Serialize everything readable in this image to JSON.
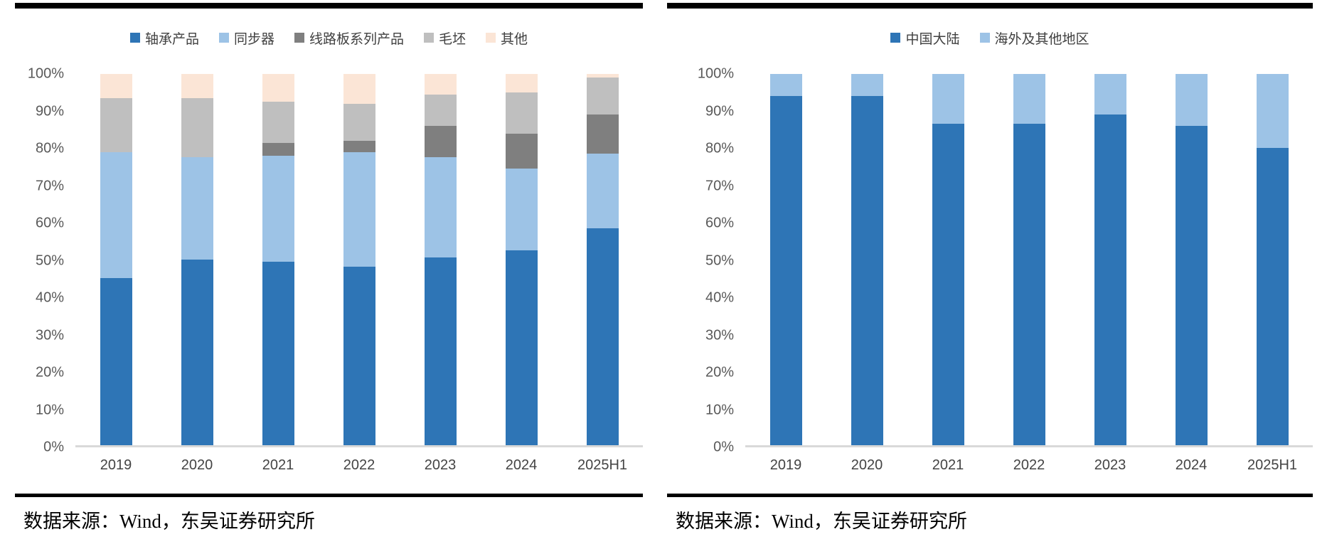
{
  "panels": [
    {
      "source_label": "数据来源：Wind，东吴证券研究所"
    },
    {
      "source_label": "数据来源：Wind，东吴证券研究所"
    }
  ],
  "chart_data": [
    {
      "type": "bar",
      "stacked": true,
      "stacked_100_percent": true,
      "title": "",
      "xlabel": "",
      "ylabel": "",
      "categories": [
        "2019",
        "2020",
        "2021",
        "2022",
        "2023",
        "2024",
        "2025H1"
      ],
      "series": [
        {
          "name": "轴承产品",
          "color": "#2E75B6",
          "values": [
            45,
            50,
            49.5,
            48,
            50.5,
            52.5,
            58.5
          ]
        },
        {
          "name": "同步器",
          "color": "#9DC3E6",
          "values": [
            34,
            27.5,
            28.5,
            31,
            27,
            22,
            20
          ]
        },
        {
          "name": "线路板系列产品",
          "color": "#7F7F7F",
          "values": [
            0,
            0,
            3.5,
            3,
            8.5,
            9.5,
            10.5
          ]
        },
        {
          "name": "毛坯",
          "color": "#BFBFBF",
          "values": [
            14.5,
            16,
            11,
            10,
            8.5,
            11,
            10
          ]
        },
        {
          "name": "其他",
          "color": "#FBE5D6",
          "values": [
            6.5,
            6.5,
            7.5,
            8,
            5.5,
            5,
            1
          ]
        }
      ],
      "y_ticks": [
        "0%",
        "10%",
        "20%",
        "30%",
        "40%",
        "50%",
        "60%",
        "70%",
        "80%",
        "90%",
        "100%"
      ],
      "ylim": [
        0,
        100
      ],
      "legend_position": "top",
      "grid": false,
      "axis_line_color": "#D9D9D9",
      "tick_color": "#595959"
    },
    {
      "type": "bar",
      "stacked": true,
      "stacked_100_percent": true,
      "title": "",
      "xlabel": "",
      "ylabel": "",
      "categories": [
        "2019",
        "2020",
        "2021",
        "2022",
        "2023",
        "2024",
        "2025H1"
      ],
      "series": [
        {
          "name": "中国大陆",
          "color": "#2E75B6",
          "values": [
            94,
            94,
            86.5,
            86.5,
            89,
            86,
            80
          ]
        },
        {
          "name": "海外及其他地区",
          "color": "#9DC3E6",
          "values": [
            6,
            6,
            13.5,
            13.5,
            11,
            14,
            20
          ]
        }
      ],
      "y_ticks": [
        "0%",
        "10%",
        "20%",
        "30%",
        "40%",
        "50%",
        "60%",
        "70%",
        "80%",
        "90%",
        "100%"
      ],
      "ylim": [
        0,
        100
      ],
      "legend_position": "top",
      "grid": false,
      "axis_line_color": "#D9D9D9",
      "tick_color": "#595959"
    }
  ]
}
